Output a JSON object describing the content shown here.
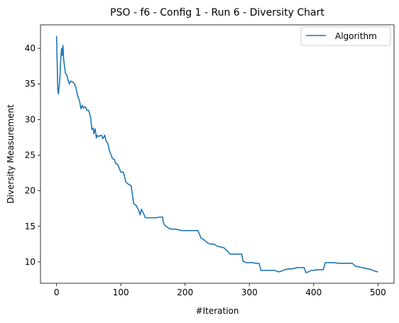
{
  "chart_data": {
    "type": "line",
    "title": "PSO - f6 - Config 1 - Run 6 - Diversity Chart",
    "xlabel": "#Iteration",
    "ylabel": "Diversity Measurement",
    "xlim": [
      -25,
      525
    ],
    "ylim": [
      7.0,
      43.3
    ],
    "xticks": [
      0,
      100,
      200,
      300,
      400,
      500
    ],
    "yticks": [
      10,
      15,
      20,
      25,
      30,
      35,
      40
    ],
    "grid": false,
    "legend_position": "top-right",
    "series": [
      {
        "name": "Algorithm",
        "color": "#1f77b4",
        "x": [
          0,
          2,
          3,
          5,
          7,
          8,
          9,
          10,
          11,
          12,
          13,
          14,
          16,
          18,
          20,
          22,
          25,
          28,
          30,
          33,
          36,
          38,
          40,
          42,
          45,
          47,
          50,
          53,
          55,
          57,
          58,
          60,
          62,
          63,
          65,
          67,
          70,
          72,
          75,
          77,
          80,
          82,
          85,
          87,
          90,
          92,
          95,
          97,
          100,
          104,
          108,
          112,
          116,
          120,
          124,
          128,
          130,
          132,
          134,
          136,
          138,
          140,
          142,
          144,
          147,
          150,
          152,
          155,
          160,
          165,
          166,
          168,
          170,
          172,
          175,
          180,
          185,
          190,
          195,
          200,
          210,
          220,
          225,
          228,
          232,
          236,
          240,
          245,
          250,
          255,
          260,
          265,
          270,
          280,
          288,
          290,
          295,
          300,
          305,
          310,
          315,
          318,
          322,
          330,
          340,
          345,
          350,
          355,
          360,
          365,
          370,
          375,
          380,
          385,
          388,
          392,
          396,
          400,
          405,
          410,
          415,
          418,
          422,
          430,
          440,
          450,
          460,
          465,
          470,
          475,
          480,
          485,
          490,
          495,
          500
        ],
        "y": [
          41.7,
          34.0,
          33.6,
          35.5,
          39.2,
          40.0,
          39.0,
          40.4,
          38.5,
          37.8,
          37.0,
          36.5,
          36.2,
          35.5,
          35.0,
          35.4,
          35.3,
          35.0,
          34.5,
          33.3,
          32.5,
          31.5,
          32.0,
          31.6,
          31.8,
          31.3,
          31.3,
          30.3,
          28.6,
          28.8,
          28.0,
          28.7,
          27.4,
          27.8,
          27.6,
          27.7,
          27.8,
          27.3,
          27.8,
          27.0,
          26.6,
          25.7,
          25.0,
          24.5,
          24.4,
          23.8,
          23.7,
          23.3,
          22.6,
          22.6,
          21.2,
          20.9,
          20.7,
          18.2,
          17.9,
          17.2,
          16.6,
          17.4,
          17.0,
          16.7,
          16.2,
          16.2,
          16.2,
          16.2,
          16.2,
          16.2,
          16.2,
          16.2,
          16.3,
          16.3,
          15.6,
          15.2,
          15.0,
          14.9,
          14.7,
          14.6,
          14.6,
          14.5,
          14.4,
          14.4,
          14.4,
          14.4,
          13.3,
          13.2,
          12.9,
          12.6,
          12.5,
          12.5,
          12.2,
          12.1,
          12.0,
          11.6,
          11.1,
          11.1,
          11.1,
          10.1,
          9.9,
          9.9,
          9.9,
          9.8,
          9.8,
          8.8,
          8.8,
          8.8,
          8.8,
          8.6,
          8.7,
          8.9,
          9.0,
          9.0,
          9.1,
          9.2,
          9.2,
          9.2,
          8.5,
          8.6,
          8.8,
          8.8,
          8.9,
          8.9,
          8.9,
          9.9,
          9.9,
          9.9,
          9.8,
          9.8,
          9.8,
          9.4,
          9.3,
          9.2,
          9.1,
          9.0,
          8.9,
          8.7,
          8.6
        ]
      }
    ]
  }
}
